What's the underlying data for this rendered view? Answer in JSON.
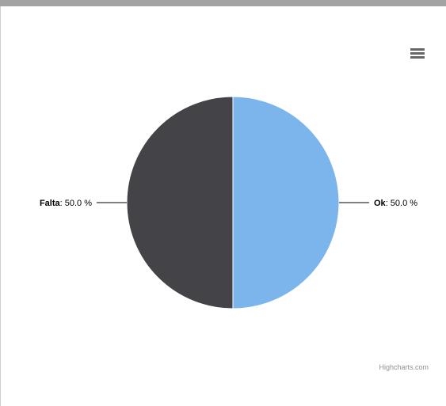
{
  "chart_data": {
    "type": "pie",
    "title": "",
    "slices": [
      {
        "name": "Ok",
        "value": 50.0,
        "label_suffix": "50.0 %",
        "color": "#7cb5ec"
      },
      {
        "name": "Falta",
        "value": 50.0,
        "label_suffix": "50.0 %",
        "color": "#434348"
      }
    ],
    "credits": "Highcharts.com"
  },
  "menu": {
    "icon": "hamburger-menu-icon"
  },
  "colors": {
    "top_bar": "#a3a3a3",
    "slice_border": "#ffffff",
    "connector": "#000000"
  }
}
